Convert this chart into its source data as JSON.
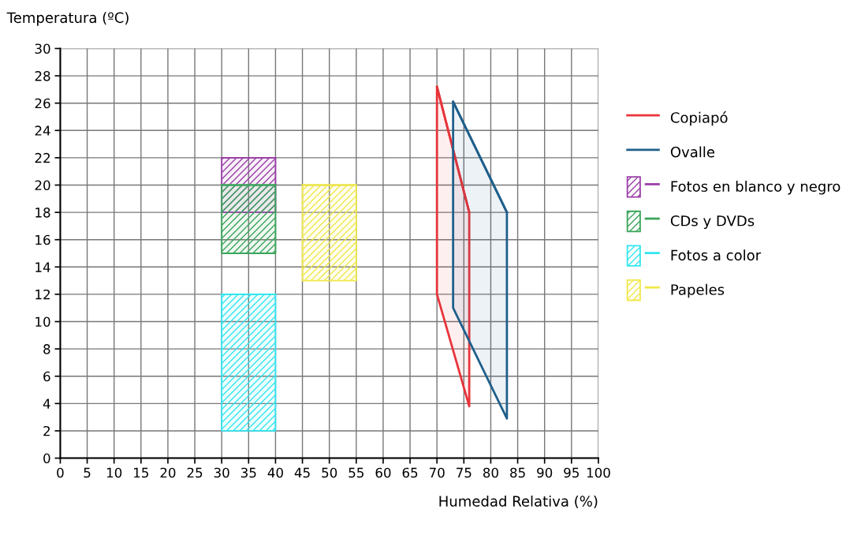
{
  "chart_data": {
    "type": "line",
    "xlabel": "Humedad Relativa (%)",
    "ylabel": "Temperatura (ºC)",
    "xlim": [
      0,
      100
    ],
    "ylim": [
      0,
      30
    ],
    "xticks": [
      0,
      5,
      10,
      15,
      20,
      25,
      30,
      35,
      40,
      45,
      50,
      55,
      60,
      65,
      70,
      75,
      80,
      85,
      90,
      95,
      100
    ],
    "yticks": [
      0,
      2,
      4,
      6,
      8,
      10,
      12,
      14,
      16,
      18,
      20,
      22,
      24,
      26,
      28,
      30
    ],
    "grid": true,
    "legend": "right",
    "marker": "none",
    "line_style": "solid",
    "series": [
      {
        "name": "Copiapó",
        "color": "#e8343a",
        "x": [
          70,
          76
        ],
        "values": [
          27.2,
          18
        ],
        "lower": [
          12,
          3.8
        ],
        "upper": [
          27.2,
          18
        ]
      },
      {
        "name": "Ovalle",
        "color": "#1f5f8b",
        "x": [
          73,
          83
        ],
        "values": [
          26.1,
          18
        ],
        "lower": [
          11,
          2.9
        ],
        "upper": [
          26.1,
          18
        ]
      },
      {
        "name": "Fotos en blanco y negro",
        "color": "#9b3fa8",
        "x": [
          30,
          40
        ],
        "values": [
          22,
          22
        ],
        "lower": [
          18,
          18
        ],
        "upper": [
          22,
          22
        ]
      },
      {
        "name": "CDs y DVDs",
        "color": "#3aa55a",
        "x": [
          30,
          40
        ],
        "values": [
          20,
          20
        ],
        "lower": [
          15,
          15
        ],
        "upper": [
          20,
          20
        ]
      },
      {
        "name": "Fotos a color",
        "color": "#33e6f0",
        "x": [
          30,
          40
        ],
        "values": [
          12,
          12
        ],
        "lower": [
          2,
          2
        ],
        "upper": [
          12,
          12
        ]
      },
      {
        "name": "Papeles",
        "color": "#f0e84a",
        "x": [
          45,
          55
        ],
        "values": [
          20,
          20
        ],
        "lower": [
          13,
          13
        ],
        "upper": [
          20,
          20
        ]
      }
    ]
  }
}
